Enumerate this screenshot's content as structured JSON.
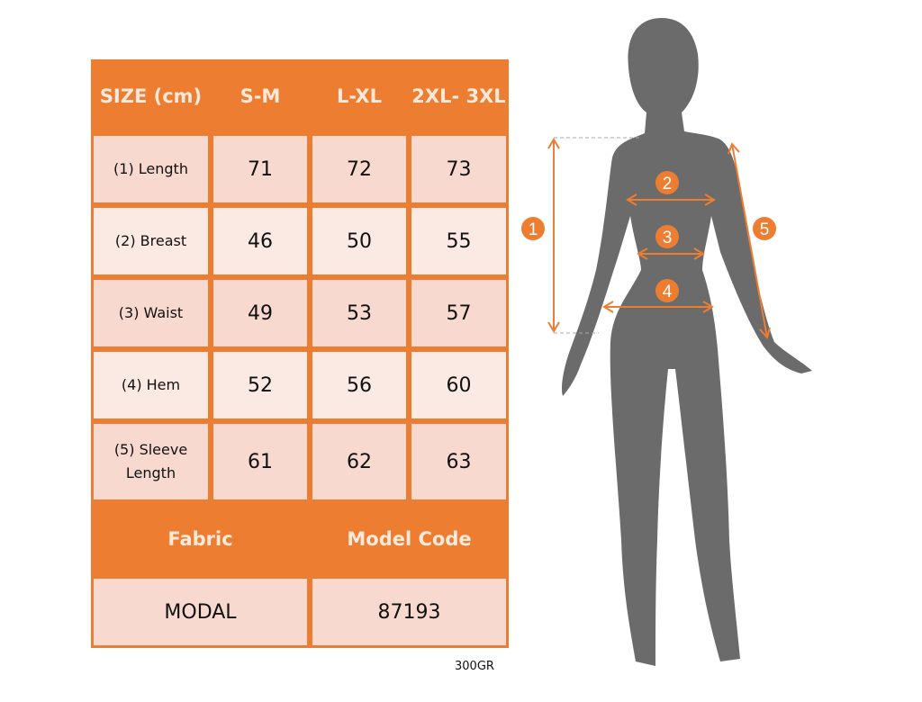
{
  "colors": {
    "accent": "#ed7d31",
    "cell_dark": "#f8d9cf",
    "cell_light": "#fbe9e4",
    "silhouette": "#6b6b6b"
  },
  "table": {
    "header": [
      "SIZE (cm)",
      "S-M",
      "L-XL",
      "2XL- 3XL"
    ],
    "rows": [
      {
        "label": "(1) Length",
        "values": [
          "71",
          "72",
          "73"
        ]
      },
      {
        "label": "(2) Breast",
        "values": [
          "46",
          "50",
          "55"
        ]
      },
      {
        "label": "(3) Waist",
        "values": [
          "49",
          "53",
          "57"
        ]
      },
      {
        "label": "(4) Hem",
        "values": [
          "52",
          "56",
          "60"
        ]
      },
      {
        "label": "(5) Sleeve Length",
        "values": [
          "61",
          "62",
          "63"
        ]
      }
    ],
    "footer_headers": [
      "Fabric",
      "Model Code"
    ],
    "footer_values": [
      "MODAL",
      "87193"
    ]
  },
  "note": "300GR",
  "figure": {
    "markers": [
      "1",
      "2",
      "3",
      "4",
      "5"
    ]
  }
}
